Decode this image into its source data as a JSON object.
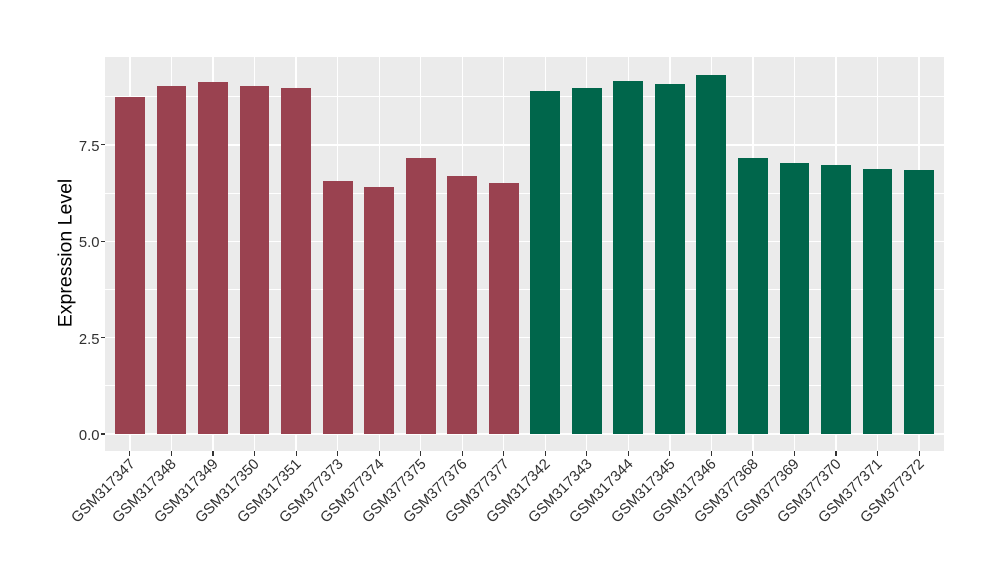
{
  "chart_data": {
    "type": "bar",
    "title": "",
    "xlabel": "",
    "ylabel": "Expression Level",
    "categories": [
      "GSM317347",
      "GSM317348",
      "GSM317349",
      "GSM317350",
      "GSM317351",
      "GSM377373",
      "GSM377374",
      "GSM377375",
      "GSM377376",
      "GSM377377",
      "GSM317342",
      "GSM317343",
      "GSM317344",
      "GSM317345",
      "GSM317346",
      "GSM377368",
      "GSM377369",
      "GSM377370",
      "GSM377371",
      "GSM377372"
    ],
    "values": [
      8.74,
      9.02,
      9.12,
      9.04,
      8.97,
      6.56,
      6.41,
      7.16,
      6.7,
      6.5,
      8.9,
      8.98,
      9.16,
      9.08,
      9.31,
      7.16,
      7.04,
      6.98,
      6.88,
      6.85
    ],
    "bar_colors": [
      "#9A4250",
      "#9A4250",
      "#9A4250",
      "#9A4250",
      "#9A4250",
      "#9A4250",
      "#9A4250",
      "#9A4250",
      "#9A4250",
      "#9A4250",
      "#00664B",
      "#00664B",
      "#00664B",
      "#00664B",
      "#00664B",
      "#00664B",
      "#00664B",
      "#00664B",
      "#00664B",
      "#00664B"
    ],
    "group_colors": {
      "group1": "#9A4250",
      "group2": "#00664B"
    },
    "yticks": [
      0.0,
      2.5,
      5.0,
      7.5
    ],
    "ytick_labels": [
      "0.0",
      "2.5",
      "5.0",
      "7.5"
    ],
    "minor_yticks": [
      1.25,
      3.75,
      6.25,
      8.75
    ],
    "ylim": [
      -0.44,
      9.78
    ],
    "bar_width_frac": 0.72,
    "grid": "on",
    "legend": "none",
    "panel_bg": "#EBEBEB",
    "grid_color": "#FFFFFF",
    "tick_color": "#333333",
    "axis_text_color": "#303030",
    "axis_title_color": "#000000"
  }
}
